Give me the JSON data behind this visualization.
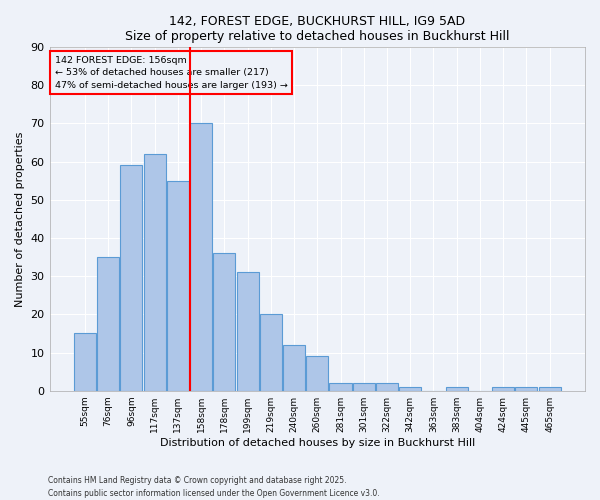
{
  "title1": "142, FOREST EDGE, BUCKHURST HILL, IG9 5AD",
  "title2": "Size of property relative to detached houses in Buckhurst Hill",
  "xlabel": "Distribution of detached houses by size in Buckhurst Hill",
  "ylabel": "Number of detached properties",
  "categories": [
    "55sqm",
    "76sqm",
    "96sqm",
    "117sqm",
    "137sqm",
    "158sqm",
    "178sqm",
    "199sqm",
    "219sqm",
    "240sqm",
    "260sqm",
    "281sqm",
    "301sqm",
    "322sqm",
    "342sqm",
    "363sqm",
    "383sqm",
    "404sqm",
    "424sqm",
    "445sqm",
    "465sqm"
  ],
  "values": [
    15,
    35,
    59,
    62,
    55,
    70,
    36,
    31,
    20,
    12,
    9,
    2,
    2,
    2,
    1,
    0,
    1,
    0,
    1,
    1,
    1
  ],
  "bar_color": "#aec6e8",
  "bar_edge_color": "#5b9bd5",
  "annotation_line1": "142 FOREST EDGE: 156sqm",
  "annotation_line2": "← 53% of detached houses are smaller (217)",
  "annotation_line3": "47% of semi-detached houses are larger (193) →",
  "ylim": [
    0,
    90
  ],
  "yticks": [
    0,
    10,
    20,
    30,
    40,
    50,
    60,
    70,
    80,
    90
  ],
  "background_color": "#eef2f9",
  "grid_color": "#ffffff",
  "footer1": "Contains HM Land Registry data © Crown copyright and database right 2025.",
  "footer2": "Contains public sector information licensed under the Open Government Licence v3.0."
}
